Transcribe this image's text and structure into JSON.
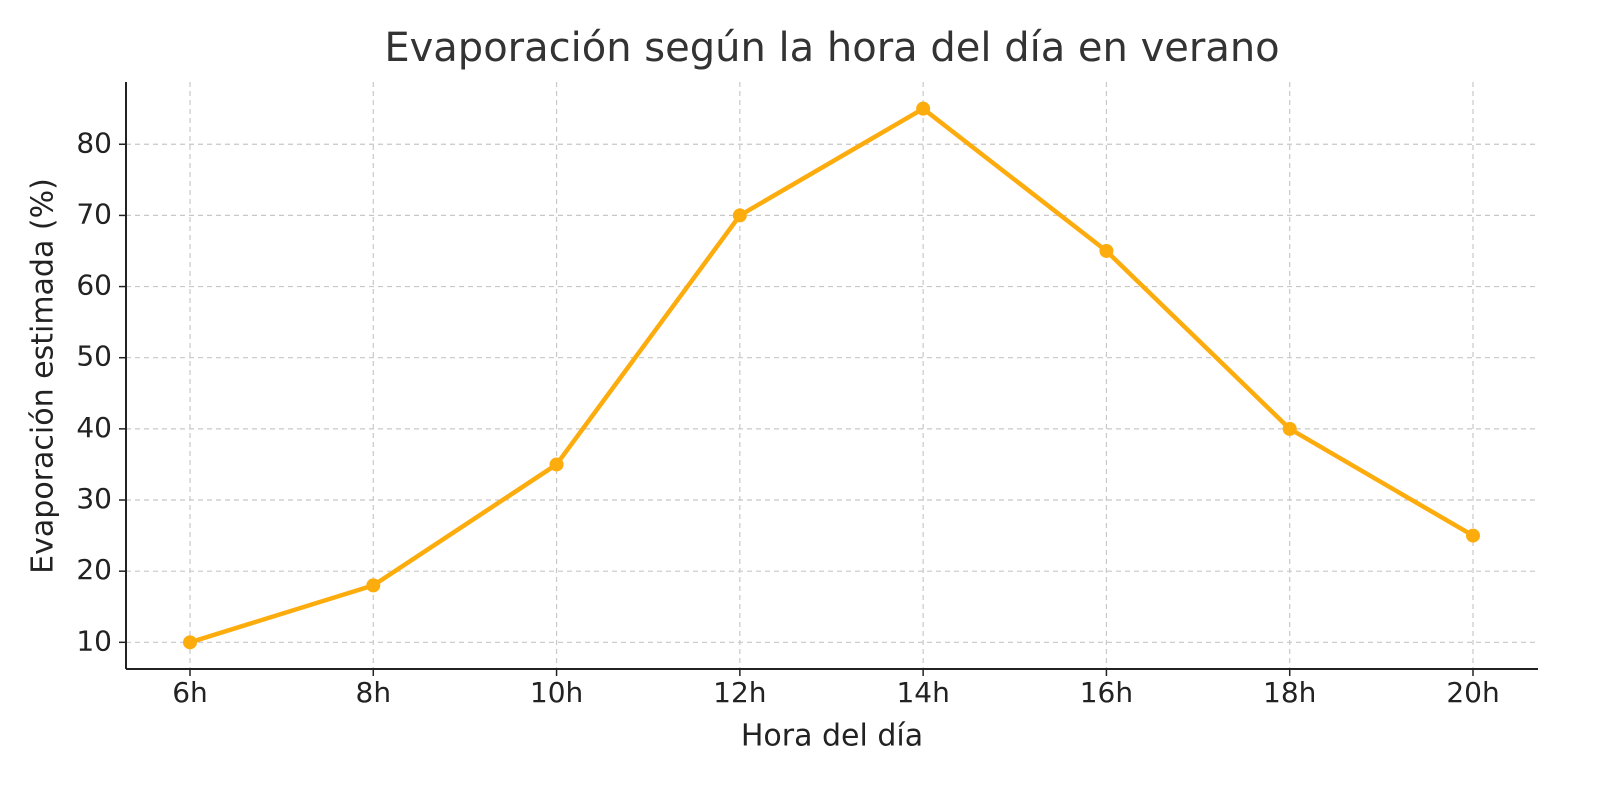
{
  "chart_data": {
    "type": "line",
    "title": "Evaporación según la hora del día en verano",
    "x_label": "Hora del día",
    "y_label": "Evaporación estimada (%)",
    "categories": [
      "6h",
      "8h",
      "10h",
      "12h",
      "14h",
      "16h",
      "18h",
      "20h"
    ],
    "series": [
      {
        "name": "Evaporación estimada",
        "color": "#fdac0d",
        "values": [
          10,
          18,
          35,
          70,
          85,
          65,
          40,
          25
        ]
      }
    ],
    "ylim": [
      6.25,
      88.75
    ],
    "yticks": [
      10,
      20,
      30,
      40,
      50,
      60,
      70,
      80
    ],
    "grid": true
  }
}
